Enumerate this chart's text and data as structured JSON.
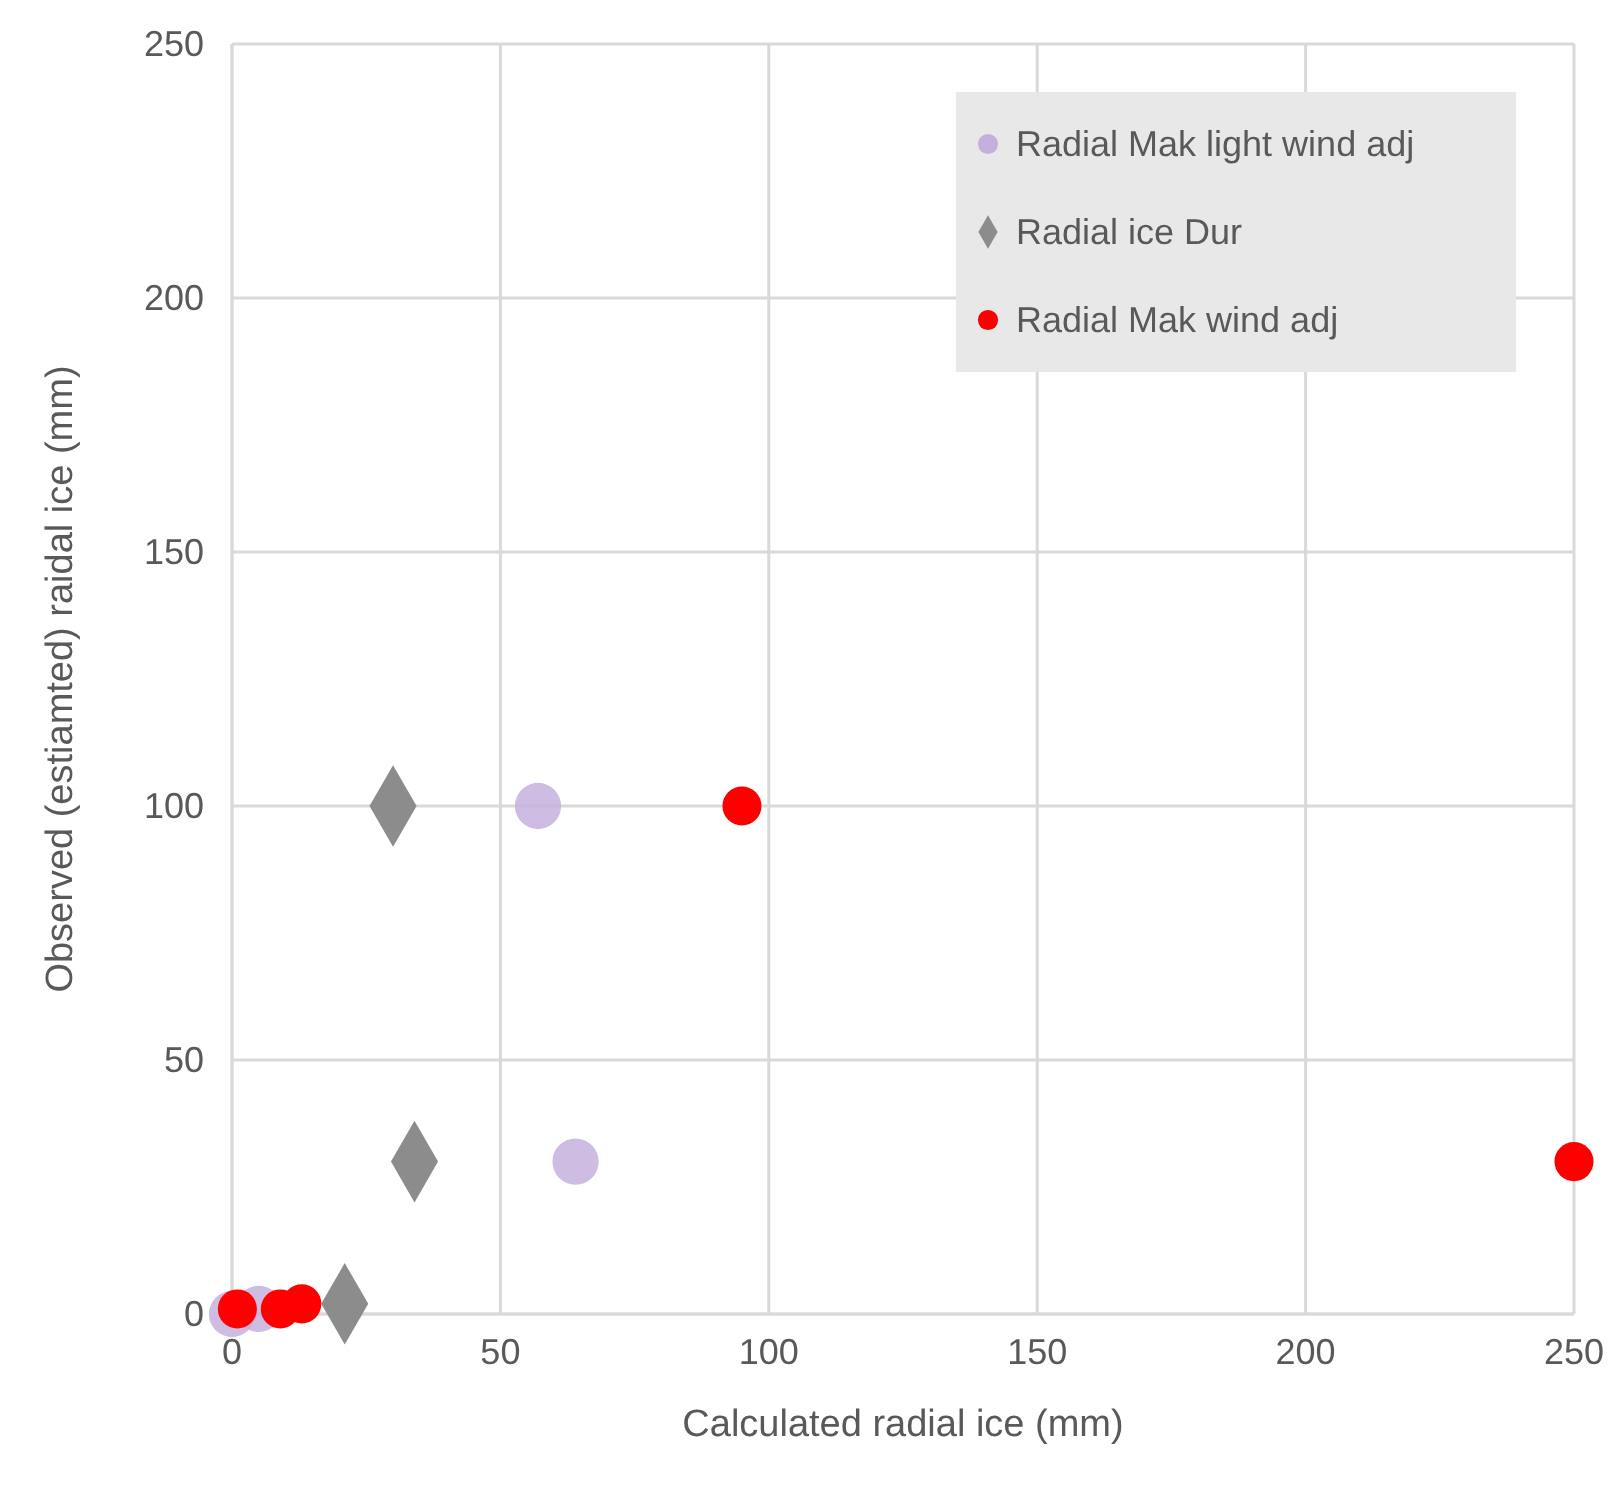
{
  "chart_data": {
    "type": "scatter",
    "xlabel": "Calculated radial ice (mm)",
    "ylabel": "Observed (estiamted) raidal ice (mm)",
    "xlim": [
      0,
      250
    ],
    "ylim": [
      0,
      250
    ],
    "xticks": [
      0,
      50,
      100,
      150,
      200,
      250
    ],
    "yticks": [
      0,
      50,
      100,
      150,
      200,
      250
    ],
    "grid": true,
    "legend": "top right",
    "series": [
      {
        "name": "Radial Mak light wind adj",
        "color": "#c5b0dd",
        "marker": "circle",
        "x": [
          57,
          64,
          0,
          5
        ],
        "values": [
          100,
          30,
          0,
          1
        ]
      },
      {
        "name": "Radial ice Dur",
        "color": "#8c8c8c",
        "marker": "diamond",
        "x": [
          30,
          34,
          21
        ],
        "values": [
          100,
          30,
          2
        ]
      },
      {
        "name": "Radial Mak wind adj",
        "color": "#ff0000",
        "marker": "circle",
        "x": [
          95,
          250,
          1,
          9,
          13
        ],
        "values": [
          100,
          30,
          1,
          1,
          2
        ]
      }
    ]
  }
}
